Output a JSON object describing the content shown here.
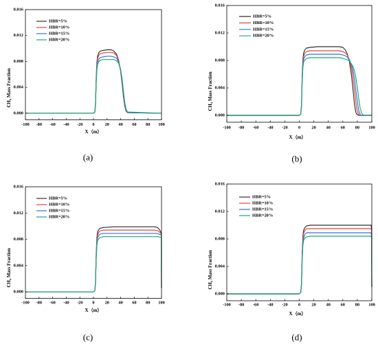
{
  "chart_data": [
    {
      "type": "line",
      "panel_label": "(a)",
      "xlabel": "X（m）",
      "ylabel": "CH₄ Mass Fraction",
      "xlim": [
        -100,
        100
      ],
      "ylim": [
        -0.001,
        0.016
      ],
      "xticks": [
        "-100",
        "-80",
        "-60",
        "-40",
        "-20",
        "0",
        "20",
        "40",
        "60",
        "80",
        "100"
      ],
      "yticks": [
        "0.000",
        "0.004",
        "0.008",
        "0.012",
        "0.016"
      ],
      "grid": false,
      "legend": "top-left",
      "x": [
        -100,
        0,
        2,
        3,
        4,
        5,
        6,
        8,
        10,
        14,
        20,
        26,
        30,
        34,
        37,
        40,
        42,
        44,
        46,
        48,
        50,
        100
      ],
      "series": [
        {
          "name": "HBR=5%",
          "color": "#2d2d2d",
          "y": [
            0,
            0,
            0.0002,
            0.0015,
            0.0055,
            0.0078,
            0.0088,
            0.0094,
            0.0096,
            0.0097,
            0.0098,
            0.0098,
            0.0096,
            0.0091,
            0.0082,
            0.0064,
            0.0046,
            0.0026,
            0.0011,
            0.0003,
            0.0001,
            0
          ]
        },
        {
          "name": "HBR=10%",
          "color": "#e5423a",
          "y": [
            0,
            0,
            0.0002,
            0.0014,
            0.0052,
            0.0074,
            0.0084,
            0.009,
            0.0092,
            0.0093,
            0.0094,
            0.0094,
            0.0093,
            0.0089,
            0.0081,
            0.0066,
            0.0049,
            0.0029,
            0.0013,
            0.0004,
            0.0001,
            0
          ]
        },
        {
          "name": "HBR=15%",
          "color": "#2f74d0",
          "y": [
            0,
            0,
            0.0002,
            0.0013,
            0.0049,
            0.007,
            0.0079,
            0.0084,
            0.0086,
            0.0087,
            0.0088,
            0.0088,
            0.0087,
            0.0085,
            0.0079,
            0.0067,
            0.0052,
            0.0032,
            0.0015,
            0.0005,
            0.0001,
            0
          ]
        },
        {
          "name": "HBR=20%",
          "color": "#1fa57a",
          "y": [
            0,
            0,
            0.0002,
            0.0012,
            0.0046,
            0.0066,
            0.0075,
            0.008,
            0.0082,
            0.0083,
            0.0083,
            0.0083,
            0.0083,
            0.0081,
            0.0077,
            0.0067,
            0.0054,
            0.0035,
            0.0017,
            0.0006,
            0.0002,
            0
          ]
        }
      ]
    },
    {
      "type": "line",
      "panel_label": "(b)",
      "xlabel": "X（m）",
      "ylabel": "CH₄ Mass Fraction",
      "xlim": [
        -100,
        100
      ],
      "ylim": [
        -0.001,
        0.016
      ],
      "xticks": [
        "-100",
        "-80",
        "-60",
        "-40",
        "-20",
        "0",
        "20",
        "40",
        "60",
        "80",
        "100"
      ],
      "yticks": [
        "0.000",
        "0.004",
        "0.008",
        "0.012",
        "0.016"
      ],
      "grid": false,
      "legend": "top-left",
      "x": [
        -100,
        0,
        2,
        3,
        4,
        5,
        6,
        8,
        10,
        15,
        25,
        40,
        55,
        60,
        63,
        66,
        69,
        72,
        74,
        76,
        78,
        80,
        82,
        84,
        86,
        88,
        90,
        100
      ],
      "series": [
        {
          "name": "HBR=5%",
          "color": "#2d2d2d",
          "y": [
            0,
            0,
            0.0002,
            0.0015,
            0.0058,
            0.0082,
            0.0091,
            0.0096,
            0.0098,
            0.0099,
            0.01,
            0.01,
            0.01,
            0.0099,
            0.0096,
            0.009,
            0.0079,
            0.0058,
            0.0038,
            0.0017,
            0.0004,
            0.0001,
            0,
            0,
            0,
            0,
            0,
            0
          ]
        },
        {
          "name": "HBR=10%",
          "color": "#e5423a",
          "y": [
            0,
            0,
            0.0002,
            0.0014,
            0.0055,
            0.0078,
            0.0086,
            0.0091,
            0.0093,
            0.0094,
            0.0094,
            0.0094,
            0.0094,
            0.0093,
            0.0091,
            0.0088,
            0.0081,
            0.0069,
            0.0056,
            0.0038,
            0.0019,
            0.0006,
            0.0001,
            0,
            0,
            0,
            0,
            0
          ]
        },
        {
          "name": "HBR=15%",
          "color": "#2f74d0",
          "y": [
            0,
            0,
            0.0002,
            0.0013,
            0.0052,
            0.0074,
            0.0082,
            0.0086,
            0.0088,
            0.0089,
            0.0089,
            0.0089,
            0.0089,
            0.0088,
            0.0087,
            0.0085,
            0.0081,
            0.0074,
            0.0066,
            0.0054,
            0.0037,
            0.002,
            0.0007,
            0.0001,
            0,
            0,
            0,
            0
          ]
        },
        {
          "name": "HBR=20%",
          "color": "#1fa57a",
          "y": [
            0,
            0,
            0.0002,
            0.0012,
            0.0049,
            0.007,
            0.0078,
            0.0081,
            0.0083,
            0.0084,
            0.0084,
            0.0084,
            0.0084,
            0.0083,
            0.0082,
            0.0081,
            0.0079,
            0.0075,
            0.0071,
            0.0065,
            0.0055,
            0.0041,
            0.0024,
            0.001,
            0.0003,
            0.0001,
            0,
            0
          ]
        }
      ]
    },
    {
      "type": "line",
      "panel_label": "(c)",
      "xlabel": "X（m）",
      "ylabel": "CH₄ Mass Fraction",
      "xlim": [
        -100,
        100
      ],
      "ylim": [
        -0.001,
        0.016
      ],
      "xticks": [
        "-100",
        "-80",
        "-60",
        "-40",
        "-20",
        "0",
        "20",
        "40",
        "60",
        "80",
        "100"
      ],
      "yticks": [
        "0.000",
        "0.004",
        "0.008",
        "0.012",
        "0.016"
      ],
      "grid": false,
      "legend": "top-left",
      "x": [
        -100,
        0,
        2,
        3,
        4,
        5,
        6,
        8,
        10,
        15,
        30,
        60,
        90,
        94,
        96,
        98,
        99,
        99.6,
        100
      ],
      "series": [
        {
          "name": "HBR=5%",
          "color": "#2d2d2d",
          "y": [
            0,
            0,
            0.0002,
            0.0015,
            0.0058,
            0.0082,
            0.0091,
            0.0095,
            0.0097,
            0.0098,
            0.0099,
            0.0099,
            0.0099,
            0.0098,
            0.0096,
            0.0093,
            0.0091,
            0.009,
            0.0006
          ]
        },
        {
          "name": "HBR=10%",
          "color": "#e5423a",
          "y": [
            0,
            0,
            0.0002,
            0.0014,
            0.0055,
            0.0078,
            0.0086,
            0.0091,
            0.0093,
            0.0094,
            0.0094,
            0.0094,
            0.0094,
            0.0093,
            0.0092,
            0.009,
            0.0089,
            0.0088,
            0.0006
          ]
        },
        {
          "name": "HBR=15%",
          "color": "#2f74d0",
          "y": [
            0,
            0,
            0.0002,
            0.0013,
            0.0052,
            0.0074,
            0.0082,
            0.0086,
            0.0088,
            0.0089,
            0.0089,
            0.0089,
            0.0089,
            0.0089,
            0.0088,
            0.0087,
            0.0087,
            0.0086,
            0.0006
          ]
        },
        {
          "name": "HBR=20%",
          "color": "#1fa57a",
          "y": [
            0,
            0,
            0.0002,
            0.0012,
            0.0049,
            0.007,
            0.0078,
            0.0081,
            0.0083,
            0.0084,
            0.0084,
            0.0084,
            0.0084,
            0.0084,
            0.0084,
            0.0083,
            0.0083,
            0.0083,
            0.0006
          ]
        }
      ]
    },
    {
      "type": "line",
      "panel_label": "(d)",
      "xlabel": "X（m）",
      "ylabel": "CH₄ Mass Fraction",
      "xlim": [
        -100,
        100
      ],
      "ylim": [
        -0.001,
        0.016
      ],
      "xticks": [
        "-100",
        "-80",
        "-60",
        "-40",
        "-20",
        "0",
        "20",
        "40",
        "60",
        "80",
        "100"
      ],
      "yticks": [
        "0.000",
        "0.004",
        "0.008",
        "0.012",
        "0.016"
      ],
      "grid": false,
      "legend": "top-left",
      "x": [
        -100,
        0,
        2,
        3,
        4,
        5,
        6,
        8,
        10,
        15,
        30,
        60,
        90,
        99,
        99.7,
        100
      ],
      "series": [
        {
          "name": "HBR=5%",
          "color": "#2d2d2d",
          "y": [
            0,
            0,
            0.0002,
            0.0015,
            0.006,
            0.0084,
            0.0093,
            0.0097,
            0.0099,
            0.01,
            0.01,
            0.01,
            0.01,
            0.01,
            0.0095,
            0.001
          ]
        },
        {
          "name": "HBR=10%",
          "color": "#e5423a",
          "y": [
            0,
            0,
            0.0002,
            0.0014,
            0.0057,
            0.008,
            0.0088,
            0.0093,
            0.0095,
            0.0095,
            0.0095,
            0.0095,
            0.0095,
            0.0095,
            0.009,
            0.001
          ]
        },
        {
          "name": "HBR=15%",
          "color": "#2f74d0",
          "y": [
            0,
            0,
            0.0002,
            0.0013,
            0.0053,
            0.0075,
            0.0082,
            0.0087,
            0.0089,
            0.0089,
            0.0089,
            0.0089,
            0.0089,
            0.0089,
            0.0085,
            0.001
          ]
        },
        {
          "name": "HBR=20%",
          "color": "#1fa57a",
          "y": [
            0,
            0,
            0.0002,
            0.0012,
            0.005,
            0.0071,
            0.0078,
            0.0082,
            0.0083,
            0.0084,
            0.0084,
            0.0084,
            0.0084,
            0.0084,
            0.008,
            0.001
          ]
        }
      ]
    }
  ]
}
